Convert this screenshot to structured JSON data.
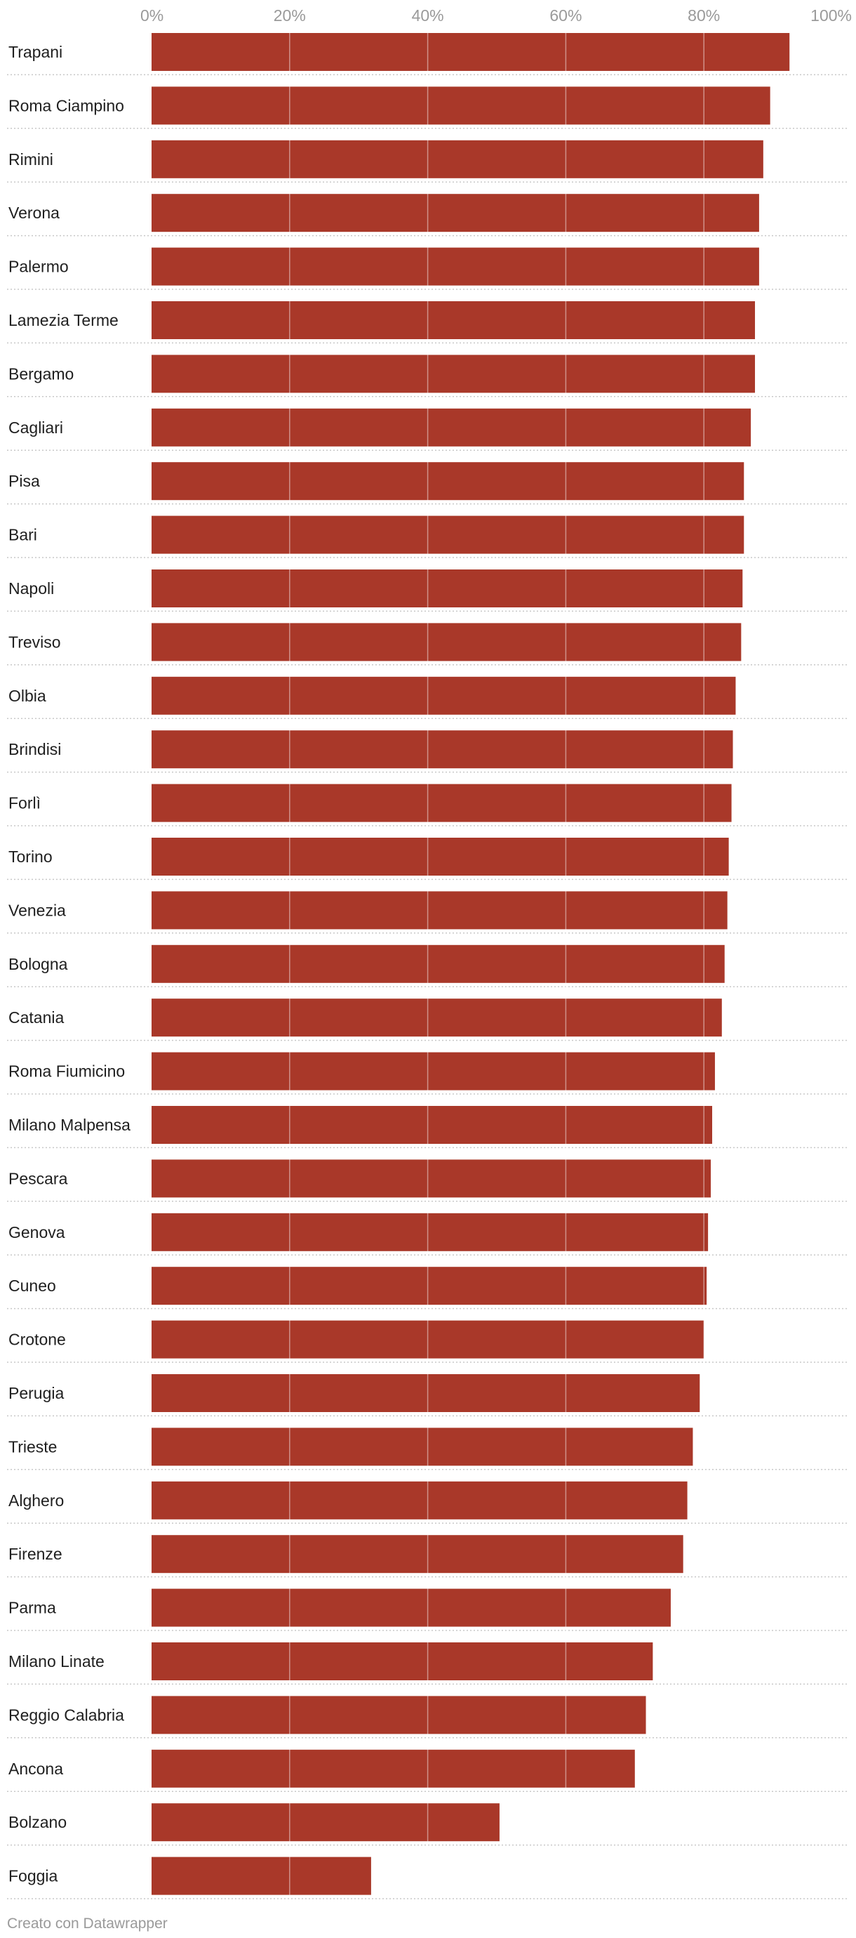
{
  "chart_data": {
    "type": "bar",
    "orientation": "horizontal",
    "title": "",
    "xlabel": "",
    "ylabel": "",
    "xlim": [
      0,
      100
    ],
    "ticks": [
      0,
      20,
      40,
      60,
      80,
      100
    ],
    "tick_labels": [
      "0%",
      "20%",
      "40%",
      "60%",
      "80%",
      "100%"
    ],
    "grid": true,
    "bar_color": "#a93829",
    "categories": [
      "Trapani",
      "Roma Ciampino",
      "Rimini",
      "Verona",
      "Palermo",
      "Lamezia Terme",
      "Bergamo",
      "Cagliari",
      "Pisa",
      "Bari",
      "Napoli",
      "Treviso",
      "Olbia",
      "Brindisi",
      "Forlì",
      "Torino",
      "Venezia",
      "Bologna",
      "Catania",
      "Roma Fiumicino",
      "Milano Malpensa",
      "Pescara",
      "Genova",
      "Cuneo",
      "Crotone",
      "Perugia",
      "Trieste",
      "Alghero",
      "Firenze",
      "Parma",
      "Milano Linate",
      "Reggio Calabria",
      "Ancona",
      "Bolzano",
      "Foggia"
    ],
    "values": [
      92.4,
      89.6,
      88.6,
      88.0,
      88.0,
      87.4,
      87.4,
      86.8,
      85.8,
      85.8,
      85.6,
      85.4,
      84.6,
      84.2,
      84.0,
      83.6,
      83.4,
      83.0,
      82.6,
      81.6,
      81.2,
      81.0,
      80.6,
      80.4,
      80.0,
      79.4,
      78.4,
      77.6,
      77.0,
      75.2,
      72.6,
      71.6,
      70.0,
      50.4,
      31.8
    ]
  },
  "footer": {
    "credit": "Creato con Datawrapper"
  }
}
